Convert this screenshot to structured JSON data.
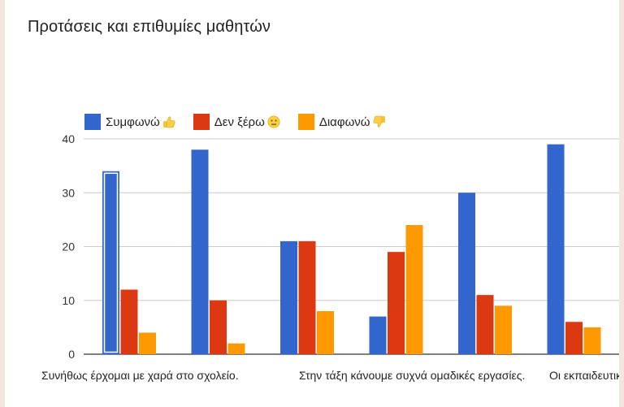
{
  "title": "Προτάσεις και επιθυμίες μαθητών",
  "legend": [
    {
      "label": "Συμφωνώ",
      "color": "#3366cc",
      "icon": "thumbs-up-icon"
    },
    {
      "label": "Δεν ξέρω",
      "color": "#dc3912",
      "icon": "neutral-face-icon"
    },
    {
      "label": "Διαφωνώ",
      "color": "#ff9900",
      "icon": "thumbs-down-icon"
    }
  ],
  "chart_data": {
    "type": "bar",
    "title": "Προτάσεις και επιθυμίες μαθητών",
    "categories": [
      "Συνήθως έρχομαι με χαρά στο σχολείο.",
      "",
      "",
      "Στην τάξη κάνουμε συχνά ομαδικές εργασίες.",
      "",
      "Οι εκπαιδευτικ"
    ],
    "series": [
      {
        "name": "Συμφωνώ",
        "color": "#3366cc",
        "values": [
          34,
          38,
          21,
          7,
          30,
          39
        ]
      },
      {
        "name": "Δεν ξέρω",
        "color": "#dc3912",
        "values": [
          12,
          10,
          21,
          19,
          11,
          6
        ]
      },
      {
        "name": "Διαφωνώ",
        "color": "#ff9900",
        "values": [
          4,
          2,
          8,
          24,
          9,
          5
        ]
      }
    ],
    "yticks": [
      0,
      10,
      20,
      30,
      40
    ],
    "ylim": [
      0,
      40
    ],
    "grid": true,
    "legend_position": "top-left"
  }
}
